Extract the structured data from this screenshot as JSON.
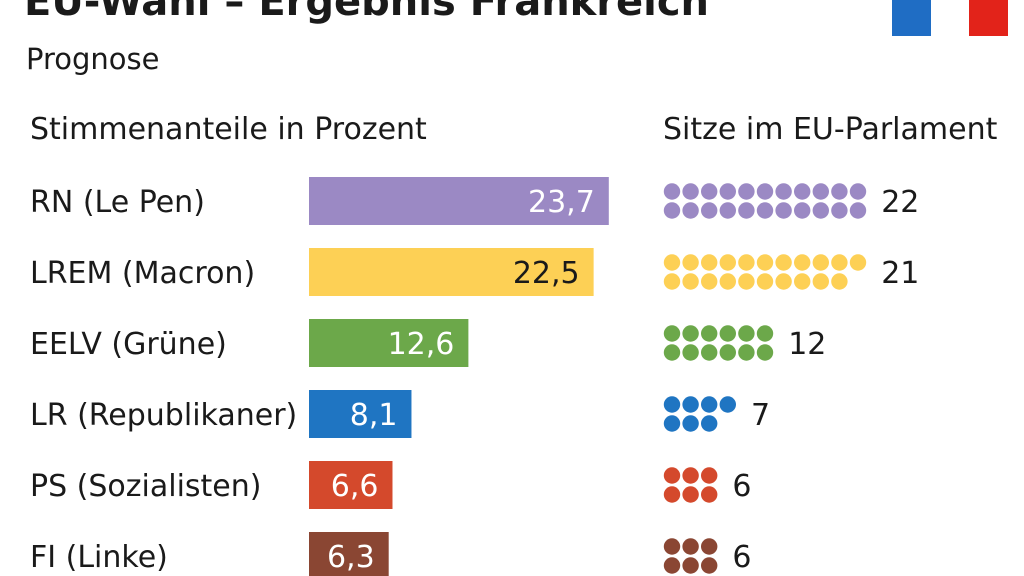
{
  "title": "EU-Wahl – Ergebnis Frankreich",
  "subtitle": "Prognose",
  "flag_colors": [
    "#1f6dc4",
    "#ffffff",
    "#e2231a"
  ],
  "chart_data": [
    {
      "type": "bar",
      "orientation": "horizontal",
      "title": "Stimmenanteile in Prozent",
      "categories": [
        "RN (Le Pen)",
        "LREM (Macron)",
        "EELV (Grüne)",
        "LR (Republikaner)",
        "PS (Sozialisten)",
        "FI (Linke)"
      ],
      "values": [
        23.7,
        22.5,
        12.6,
        8.1,
        6.6,
        6.3
      ],
      "value_labels": [
        "23,7",
        "22,5",
        "12,6",
        "8,1",
        "6,6",
        "6,3"
      ],
      "colors": [
        "#9b89c4",
        "#fdd055",
        "#6ca84a",
        "#1f75c2",
        "#d4492c",
        "#8a4633"
      ],
      "label_colors": [
        "#ffffff",
        "#1a1a1a",
        "#ffffff",
        "#ffffff",
        "#ffffff",
        "#ffffff"
      ]
    },
    {
      "type": "dot-count",
      "title": "Sitze im EU-Parlament",
      "categories": [
        "RN (Le Pen)",
        "LREM (Macron)",
        "EELV (Grüne)",
        "LR (Republikaner)",
        "PS (Sozialisten)",
        "FI (Linke)"
      ],
      "values": [
        22,
        21,
        12,
        7,
        6,
        6
      ],
      "value_labels": [
        "22",
        "21",
        "12",
        "7",
        "6",
        "6"
      ],
      "colors": [
        "#9b89c4",
        "#fdd055",
        "#6ca84a",
        "#1f75c2",
        "#d4492c",
        "#8a4633"
      ]
    }
  ]
}
